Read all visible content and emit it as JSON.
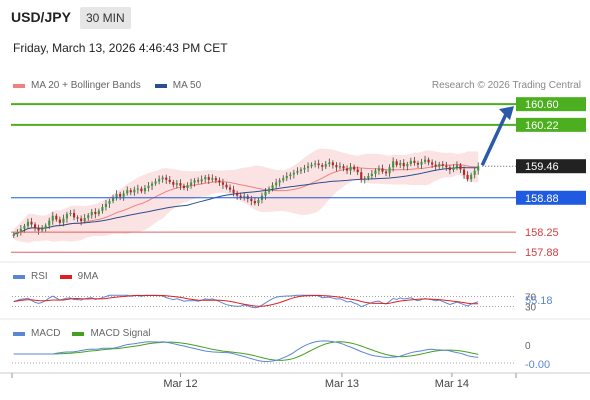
{
  "header": {
    "symbol": "USD/JPY",
    "interval": "30 MIN",
    "datetime": "Friday, March 13, 2026 4:46:43 PM CET",
    "research": "Research © 2026 Trading Central"
  },
  "legend": {
    "main": [
      {
        "label": "MA 20 + Bollinger Bands",
        "color": "#f08080"
      },
      {
        "label": "MA 50",
        "color": "#2a4f8f"
      }
    ],
    "rsi": [
      {
        "label": "RSI",
        "color": "#5b86d6"
      },
      {
        "label": "9MA",
        "color": "#e02020"
      }
    ],
    "macd": [
      {
        "label": "MACD",
        "color": "#5b86d6"
      },
      {
        "label": "MACD Signal",
        "color": "#44a020"
      }
    ]
  },
  "chart_data": {
    "type": "candlestick",
    "ylim": [
      157.7,
      160.75
    ],
    "x_ticks": [
      "Mar 12",
      "Mar 13",
      "Mar 14"
    ],
    "current_price": 159.46,
    "levels": [
      {
        "label": "160.60",
        "value": 160.6,
        "color": "#4caf20",
        "kind": "resistance"
      },
      {
        "label": "160.22",
        "value": 160.22,
        "color": "#4caf20",
        "kind": "resistance"
      },
      {
        "label": "159.46",
        "value": 159.46,
        "color": "#222222",
        "kind": "last"
      },
      {
        "label": "158.88",
        "value": 158.88,
        "color": "#1f5ae0",
        "kind": "pivot"
      },
      {
        "label": "158.25",
        "value": 158.25,
        "color": "#e06060",
        "kind": "support"
      },
      {
        "label": "157.88",
        "value": 157.88,
        "color": "#e06060",
        "kind": "support"
      }
    ],
    "target_arrow": {
      "from": 159.46,
      "to": 160.6,
      "color": "#2a5aa8"
    },
    "ohlc_close": [
      158.21,
      158.25,
      158.31,
      158.36,
      158.44,
      158.39,
      158.33,
      158.28,
      158.31,
      158.37,
      158.46,
      158.55,
      158.48,
      158.42,
      158.5,
      158.58,
      158.6,
      158.52,
      158.5,
      158.45,
      158.51,
      158.56,
      158.62,
      158.58,
      158.64,
      158.71,
      158.77,
      158.82,
      158.88,
      158.95,
      158.9,
      158.96,
      159.02,
      158.98,
      159.03,
      159.05,
      159.0,
      159.06,
      159.1,
      159.14,
      159.18,
      159.22,
      159.25,
      159.21,
      159.17,
      159.12,
      159.15,
      159.1,
      159.06,
      159.11,
      159.16,
      159.2,
      159.18,
      159.22,
      159.26,
      159.21,
      159.24,
      159.2,
      159.16,
      159.12,
      159.07,
      159.03,
      158.97,
      158.92,
      158.88,
      158.91,
      158.86,
      158.82,
      158.78,
      158.84,
      158.92,
      158.99,
      159.05,
      159.11,
      159.16,
      159.2,
      159.24,
      159.28,
      159.31,
      159.34,
      159.37,
      159.4,
      159.43,
      159.46,
      159.49,
      159.51,
      159.48,
      159.45,
      159.5,
      159.53,
      159.48,
      159.44,
      159.46,
      159.42,
      159.38,
      159.45,
      159.4,
      159.35,
      159.22,
      159.24,
      159.28,
      159.32,
      159.38,
      159.42,
      159.36,
      159.33,
      159.44,
      159.55,
      159.48,
      159.52,
      159.46,
      159.5,
      159.56,
      159.52,
      159.49,
      159.54,
      159.58,
      159.53,
      159.49,
      159.45,
      159.5,
      159.47,
      159.44,
      159.39,
      159.44,
      159.48,
      159.4,
      159.3,
      159.22,
      159.3,
      159.38,
      159.46
    ],
    "rsi": {
      "label": "55.18",
      "levels": [
        70,
        30
      ],
      "level_labels": [
        "70",
        "30"
      ],
      "range": [
        0,
        100
      ]
    },
    "macd": {
      "label": "-0.00",
      "zero_label": "0"
    }
  }
}
